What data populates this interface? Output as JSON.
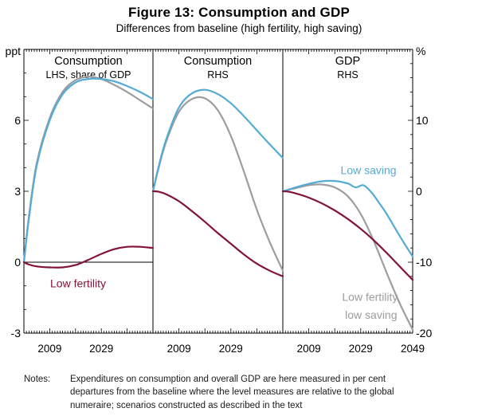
{
  "title": "Figure 13: Consumption and GDP",
  "subtitle": "Differences from baseline (high fertility, high saving)",
  "left_axis": {
    "unit": "ppt",
    "min": -3,
    "max": 9,
    "ticks": [
      6,
      3,
      0,
      -3
    ]
  },
  "right_axis": {
    "unit": "%",
    "min": -20,
    "max": 20,
    "ticks": [
      10,
      0,
      -10,
      -20
    ]
  },
  "x_axis": {
    "start": 1999,
    "end": 2049
  },
  "colors": {
    "low_saving": "#54abd4",
    "low_fertility": "#841435",
    "low_fertility_low_saving": "#9d9d9f",
    "axis": "#000000"
  },
  "chart_data": [
    {
      "type": "line",
      "title": "Consumption",
      "subtitle": "LHS, share of GDP",
      "axis": "left",
      "x_ticks": [
        2009,
        2029
      ],
      "zero_line": true,
      "series": [
        {
          "name": "Low fertility, low saving",
          "color": "low_fertility_low_saving",
          "x": [
            1999,
            2001,
            2004,
            2009,
            2014,
            2019,
            2024,
            2029,
            2034,
            2039,
            2044,
            2049
          ],
          "y": [
            0,
            2.0,
            4.2,
            6.1,
            7.2,
            7.7,
            7.85,
            7.75,
            7.5,
            7.2,
            6.85,
            6.5
          ]
        },
        {
          "name": "Low saving",
          "color": "low_saving",
          "x": [
            1999,
            2001,
            2004,
            2009,
            2014,
            2019,
            2024,
            2029,
            2034,
            2039,
            2044,
            2049
          ],
          "y": [
            0,
            1.9,
            4.1,
            6.0,
            7.1,
            7.6,
            7.75,
            7.75,
            7.65,
            7.45,
            7.2,
            6.9
          ]
        },
        {
          "name": "Low fertility",
          "color": "low_fertility",
          "x": [
            1999,
            2001,
            2004,
            2009,
            2014,
            2019,
            2024,
            2029,
            2034,
            2039,
            2044,
            2049
          ],
          "y": [
            0,
            -0.1,
            -0.18,
            -0.22,
            -0.22,
            -0.12,
            0.1,
            0.35,
            0.55,
            0.65,
            0.65,
            0.6
          ]
        }
      ],
      "annotations": [
        {
          "text": "Low fertility",
          "color": "low_fertility",
          "x": 2020,
          "y": -0.9
        }
      ]
    },
    {
      "type": "line",
      "title": "Consumption",
      "subtitle": "RHS",
      "axis": "right",
      "x_ticks": [
        2009,
        2029
      ],
      "zero_line": false,
      "series": [
        {
          "name": "Low fertility, low saving",
          "color": "low_fertility_low_saving",
          "x": [
            1999,
            2001,
            2004,
            2009,
            2014,
            2019,
            2024,
            2029,
            2034,
            2039,
            2044,
            2049
          ],
          "y": [
            0,
            3.0,
            6.9,
            11.2,
            13.0,
            13.1,
            11.4,
            7.8,
            2.8,
            -2.6,
            -7.2,
            -11.2
          ]
        },
        {
          "name": "Low saving",
          "color": "low_saving",
          "x": [
            1999,
            2001,
            2004,
            2009,
            2014,
            2019,
            2024,
            2029,
            2034,
            2039,
            2044,
            2049
          ],
          "y": [
            0,
            3.2,
            7.2,
            11.8,
            13.8,
            14.3,
            13.7,
            12.4,
            10.6,
            8.6,
            6.6,
            4.7
          ]
        },
        {
          "name": "Low fertility",
          "color": "low_fertility",
          "x": [
            1999,
            2001,
            2004,
            2009,
            2014,
            2019,
            2024,
            2029,
            2034,
            2039,
            2044,
            2049
          ],
          "y": [
            0,
            -0.05,
            -0.4,
            -1.4,
            -2.8,
            -4.3,
            -5.9,
            -7.4,
            -8.9,
            -10.2,
            -11.2,
            -12.0
          ]
        }
      ],
      "annotations": []
    },
    {
      "type": "line",
      "title": "GDP",
      "subtitle": "RHS",
      "axis": "right",
      "x_ticks": [
        2009,
        2029,
        2049
      ],
      "zero_line": false,
      "series": [
        {
          "name": "Low fertility, low saving",
          "color": "low_fertility_low_saving",
          "x": [
            1999,
            2001,
            2004,
            2009,
            2014,
            2019,
            2024,
            2029,
            2034,
            2039,
            2044,
            2049
          ],
          "y": [
            0,
            0.2,
            0.45,
            0.85,
            0.95,
            0.55,
            -0.7,
            -3.2,
            -7.0,
            -11.5,
            -15.8,
            -19.5
          ]
        },
        {
          "name": "Low saving",
          "color": "low_saving",
          "x": [
            1999,
            2001,
            2004,
            2009,
            2014,
            2019,
            2024,
            2027,
            2030,
            2033,
            2036,
            2039,
            2044,
            2049
          ],
          "y": [
            0,
            0.2,
            0.55,
            1.05,
            1.4,
            1.45,
            1.1,
            0.55,
            0.85,
            -0.1,
            -1.6,
            -3.2,
            -6.3,
            -9.2
          ]
        },
        {
          "name": "Low fertility",
          "color": "low_fertility",
          "x": [
            1999,
            2001,
            2004,
            2009,
            2014,
            2019,
            2024,
            2029,
            2034,
            2039,
            2044,
            2049
          ],
          "y": [
            0,
            -0.05,
            -0.3,
            -0.9,
            -1.7,
            -2.7,
            -3.9,
            -5.3,
            -6.9,
            -8.7,
            -10.6,
            -12.5
          ]
        }
      ],
      "annotations": [
        {
          "text": "Low saving",
          "color": "low_saving",
          "x": 2032,
          "y": 3.0
        },
        {
          "text": "Low fertility,",
          "color": "low_fertility_low_saving",
          "x": 2033,
          "y": -14.9
        },
        {
          "text": "low saving",
          "color": "low_fertility_low_saving",
          "x": 2033,
          "y": -17.4
        }
      ]
    }
  ],
  "notes": {
    "label": "Notes:",
    "text": "Expenditures on consumption and overall GDP are here measured in per cent departures from the baseline where the level measures are relative to the global numeraire; scenarios constructed as described in the text"
  }
}
